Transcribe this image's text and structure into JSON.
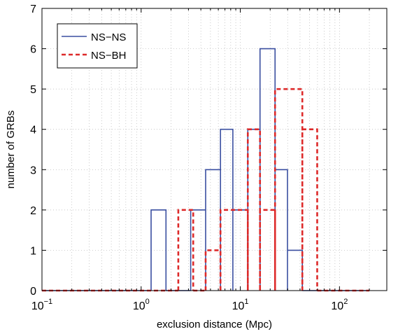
{
  "chart_data": {
    "type": "histogram-step",
    "xscale": "log",
    "xlabel": "exclusion distance (Mpc)",
    "ylabel": "number of GRBs",
    "xlim": [
      0.1,
      300
    ],
    "ylim": [
      0,
      7
    ],
    "yticks": [
      "0",
      "1",
      "2",
      "3",
      "4",
      "5",
      "6",
      "7"
    ],
    "xticks": [
      {
        "value": 0.1,
        "base": "10",
        "exp": "−1"
      },
      {
        "value": 1,
        "base": "10",
        "exp": "0"
      },
      {
        "value": 10,
        "base": "10",
        "exp": "1"
      },
      {
        "value": 100,
        "base": "10",
        "exp": "2"
      }
    ],
    "grid": true,
    "legend_position": "top-left",
    "series": [
      {
        "name": "NS−NS",
        "color": "#3a4fa0",
        "style": "solid",
        "bins": [
          {
            "lo": 0.1,
            "hi": 1.26,
            "count": 0
          },
          {
            "lo": 1.26,
            "hi": 1.78,
            "count": 2
          },
          {
            "lo": 1.78,
            "hi": 3.16,
            "count": 0
          },
          {
            "lo": 3.16,
            "hi": 4.47,
            "count": 2
          },
          {
            "lo": 4.47,
            "hi": 6.31,
            "count": 3
          },
          {
            "lo": 6.31,
            "hi": 8.41,
            "count": 4
          },
          {
            "lo": 8.41,
            "hi": 11.9,
            "count": 2
          },
          {
            "lo": 11.9,
            "hi": 15.8,
            "count": 4
          },
          {
            "lo": 15.8,
            "hi": 22.4,
            "count": 6
          },
          {
            "lo": 22.4,
            "hi": 29.9,
            "count": 3
          },
          {
            "lo": 29.9,
            "hi": 42.2,
            "count": 1
          },
          {
            "lo": 42.2,
            "hi": 200,
            "count": 0
          }
        ]
      },
      {
        "name": "NS−BH",
        "color": "#dd2a2a",
        "style": "dashed",
        "bins": [
          {
            "lo": 0.1,
            "hi": 2.37,
            "count": 0
          },
          {
            "lo": 2.37,
            "hi": 3.35,
            "count": 2
          },
          {
            "lo": 3.35,
            "hi": 4.47,
            "count": 0
          },
          {
            "lo": 4.47,
            "hi": 6.31,
            "count": 1
          },
          {
            "lo": 6.31,
            "hi": 11.9,
            "count": 2
          },
          {
            "lo": 11.9,
            "hi": 15.8,
            "count": 4
          },
          {
            "lo": 15.8,
            "hi": 22.4,
            "count": 2
          },
          {
            "lo": 22.4,
            "hi": 42.2,
            "count": 5
          },
          {
            "lo": 42.2,
            "hi": 59.6,
            "count": 4
          },
          {
            "lo": 59.6,
            "hi": 200,
            "count": 0
          }
        ]
      }
    ]
  }
}
